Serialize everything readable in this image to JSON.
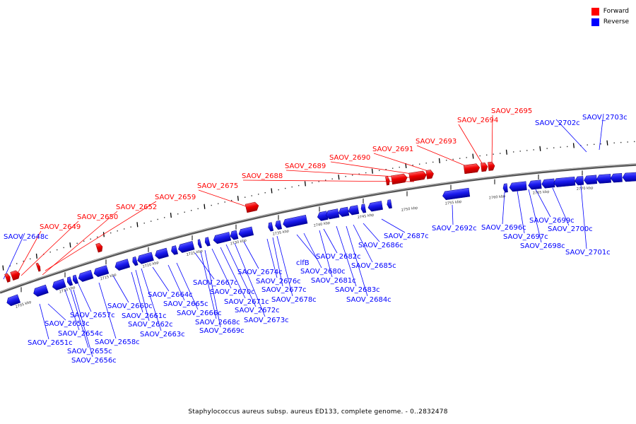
{
  "legend": {
    "forward_label": "Forward",
    "reverse_label": "Reverse",
    "forward_color": "#ff0000",
    "reverse_color": "#0000ff"
  },
  "caption": "Staphylococcus aureus subsp. aureus ED133, complete genome. - 0..2832478",
  "scale_labels": [
    "2705 kbp",
    "2710 kbp",
    "2715 kbp",
    "2720 kbp",
    "2725 kbp",
    "2730 kbp",
    "2735 kbp",
    "2740 kbp",
    "2745 kbp",
    "2750 kbp",
    "2755 kbp",
    "2760 kbp",
    "2765 kbp",
    "2770 kbp"
  ],
  "forward_genes": [
    "SAOV_2649",
    "SAOV_2650",
    "SAOV_2652",
    "SAOV_2659",
    "SAOV_2675",
    "SAOV_2688",
    "SAOV_2689",
    "SAOV_2690",
    "SAOV_2691",
    "SAOV_2693",
    "SAOV_2694",
    "SAOV_2695"
  ],
  "reverse_genes": [
    "SAOV_2648c",
    "SAOV_2651c",
    "SAOV_2653c",
    "SAOV_2654c",
    "SAOV_2655c",
    "SAOV_2656c",
    "SAOV_2657c",
    "SAOV_2658c",
    "SAOV_2660c",
    "SAOV_2661c",
    "SAOV_2662c",
    "SAOV_2663c",
    "SAOV_2664c",
    "SAOV_2665c",
    "SAOV_2666c",
    "SAOV_2667c",
    "SAOV_2668c",
    "SAOV_2669c",
    "SAOV_2670c",
    "SAOV_2671c",
    "SAOV_2672c",
    "SAOV_2673c",
    "SAOV_2674c",
    "SAOV_2676c",
    "SAOV_2677c",
    "SAOV_2678c",
    "clfB",
    "SAOV_2680c",
    "SAOV_2681c",
    "SAOV_2682c",
    "SAOV_2683c",
    "SAOV_2684c",
    "SAOV_2685c",
    "SAOV_2686c",
    "SAOV_2687c",
    "SAOV_2692c",
    "SAOV_2696c",
    "SAOV_2697c",
    "SAOV_2698c",
    "SAOV_2699c",
    "SAOV_2700c",
    "SAOV_2701c",
    "SAOV_2702c",
    "SAOV_2703c"
  ]
}
